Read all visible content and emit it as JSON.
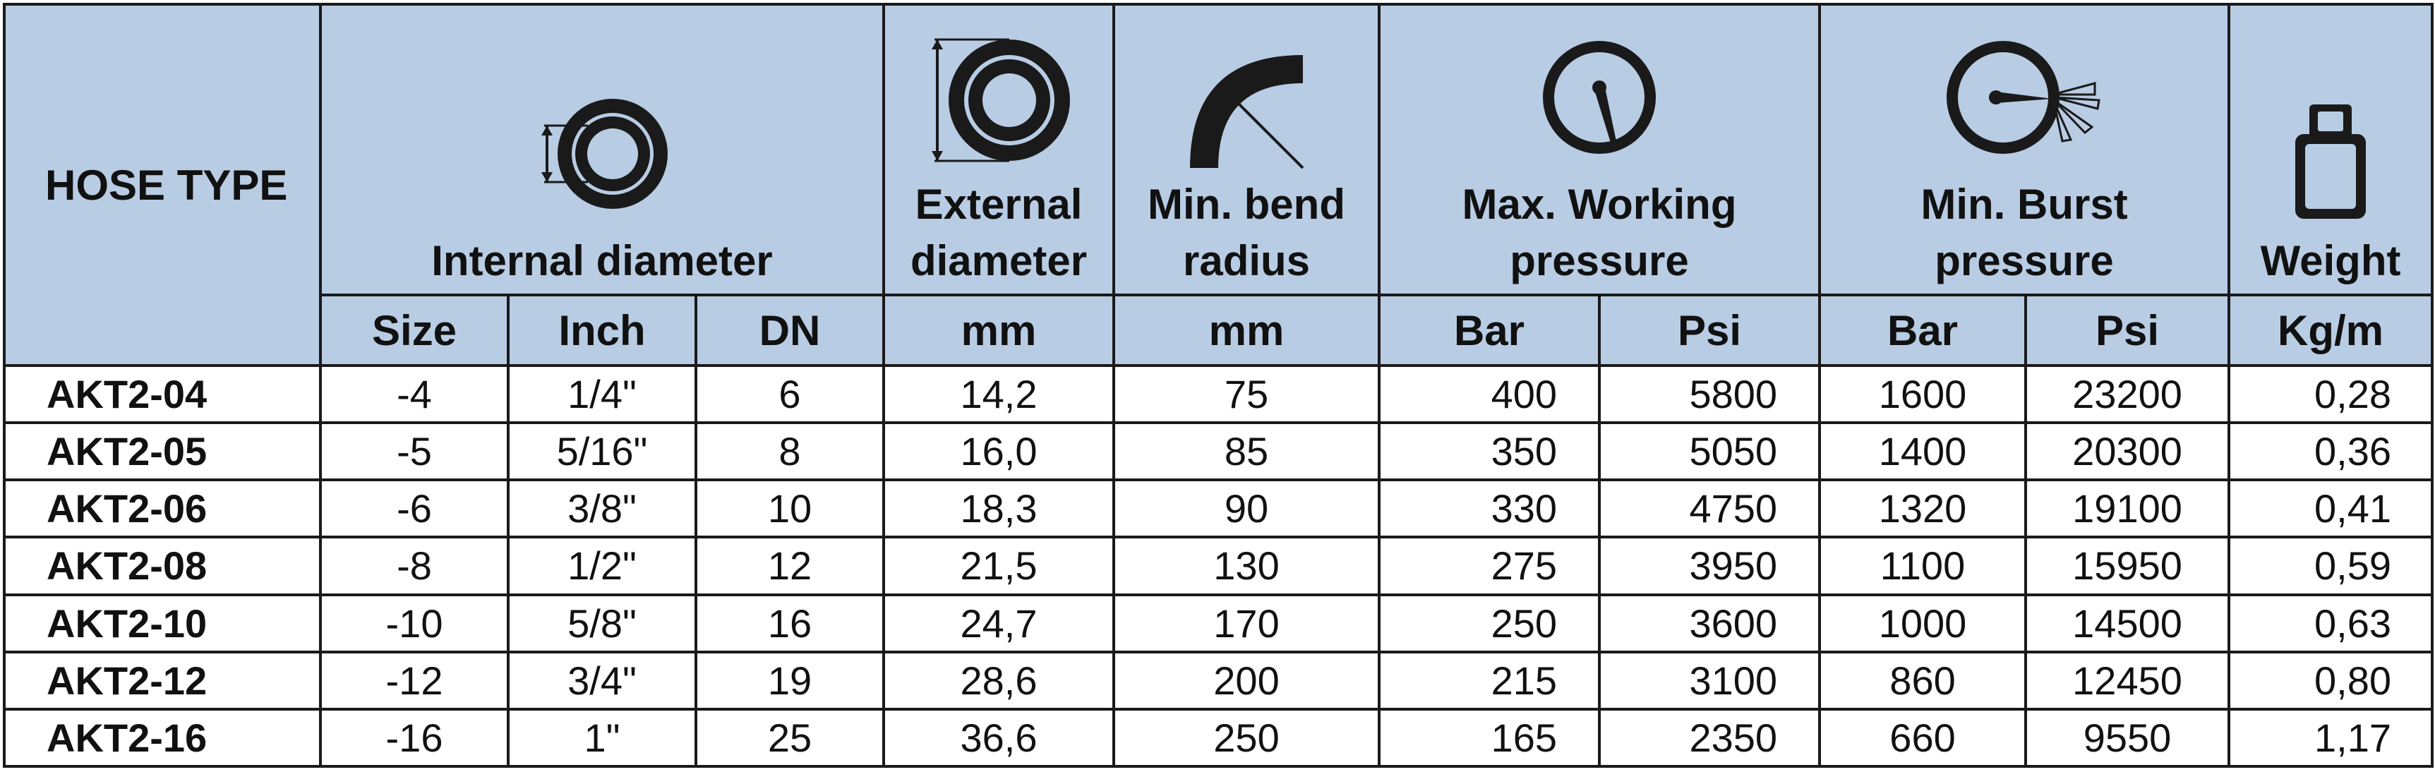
{
  "header": {
    "hose_type": "HOSE TYPE",
    "internal_diameter": "Internal diameter",
    "external_diameter_line1": "External",
    "external_diameter_line2": "diameter",
    "min_bend_line1": "Min. bend",
    "min_bend_line2": "radius",
    "max_working_line1": "Max. Working",
    "max_working_line2": "pressure",
    "min_burst_line1": "Min. Burst",
    "min_burst_line2": "pressure",
    "weight": "Weight",
    "units": {
      "size": "Size",
      "inch": "Inch",
      "dn": "DN",
      "ext_mm": "mm",
      "bend_mm": "mm",
      "work_bar": "Bar",
      "work_psi": "Psi",
      "burst_bar": "Bar",
      "burst_psi": "Psi",
      "weight_unit": "Kg/m"
    },
    "icons": {
      "internal_diameter": "internal-diameter-icon",
      "external_diameter": "external-diameter-icon",
      "bend_radius": "bend-radius-icon",
      "working_pressure": "pressure-gauge-icon",
      "burst_pressure": "burst-gauge-icon",
      "weight": "weight-icon"
    }
  },
  "rows": [
    {
      "hose": "AKT2-04",
      "size": "-4",
      "inch": "1/4\"",
      "dn": "6",
      "ext": "14,2",
      "bend": "75",
      "wbar": "400",
      "wpsi": "5800",
      "bbar": "1600",
      "bpsi": "23200",
      "weight": "0,28"
    },
    {
      "hose": "AKT2-05",
      "size": "-5",
      "inch": "5/16\"",
      "dn": "8",
      "ext": "16,0",
      "bend": "85",
      "wbar": "350",
      "wpsi": "5050",
      "bbar": "1400",
      "bpsi": "20300",
      "weight": "0,36"
    },
    {
      "hose": "AKT2-06",
      "size": "-6",
      "inch": "3/8\"",
      "dn": "10",
      "ext": "18,3",
      "bend": "90",
      "wbar": "330",
      "wpsi": "4750",
      "bbar": "1320",
      "bpsi": "19100",
      "weight": "0,41"
    },
    {
      "hose": "AKT2-08",
      "size": "-8",
      "inch": "1/2\"",
      "dn": "12",
      "ext": "21,5",
      "bend": "130",
      "wbar": "275",
      "wpsi": "3950",
      "bbar": "1100",
      "bpsi": "15950",
      "weight": "0,59"
    },
    {
      "hose": "AKT2-10",
      "size": "-10",
      "inch": "5/8\"",
      "dn": "16",
      "ext": "24,7",
      "bend": "170",
      "wbar": "250",
      "wpsi": "3600",
      "bbar": "1000",
      "bpsi": "14500",
      "weight": "0,63"
    },
    {
      "hose": "AKT2-12",
      "size": "-12",
      "inch": "3/4\"",
      "dn": "19",
      "ext": "28,6",
      "bend": "200",
      "wbar": "215",
      "wpsi": "3100",
      "bbar": "860",
      "bpsi": "12450",
      "weight": "0,80"
    },
    {
      "hose": "AKT2-16",
      "size": "-16",
      "inch": "1\"",
      "dn": "25",
      "ext": "36,6",
      "bend": "250",
      "wbar": "165",
      "wpsi": "2350",
      "bbar": "660",
      "bpsi": "9550",
      "weight": "1,17"
    }
  ],
  "colors": {
    "header_bg": "#b8cce4",
    "border": "#1a1a1a",
    "text": "#111111"
  }
}
